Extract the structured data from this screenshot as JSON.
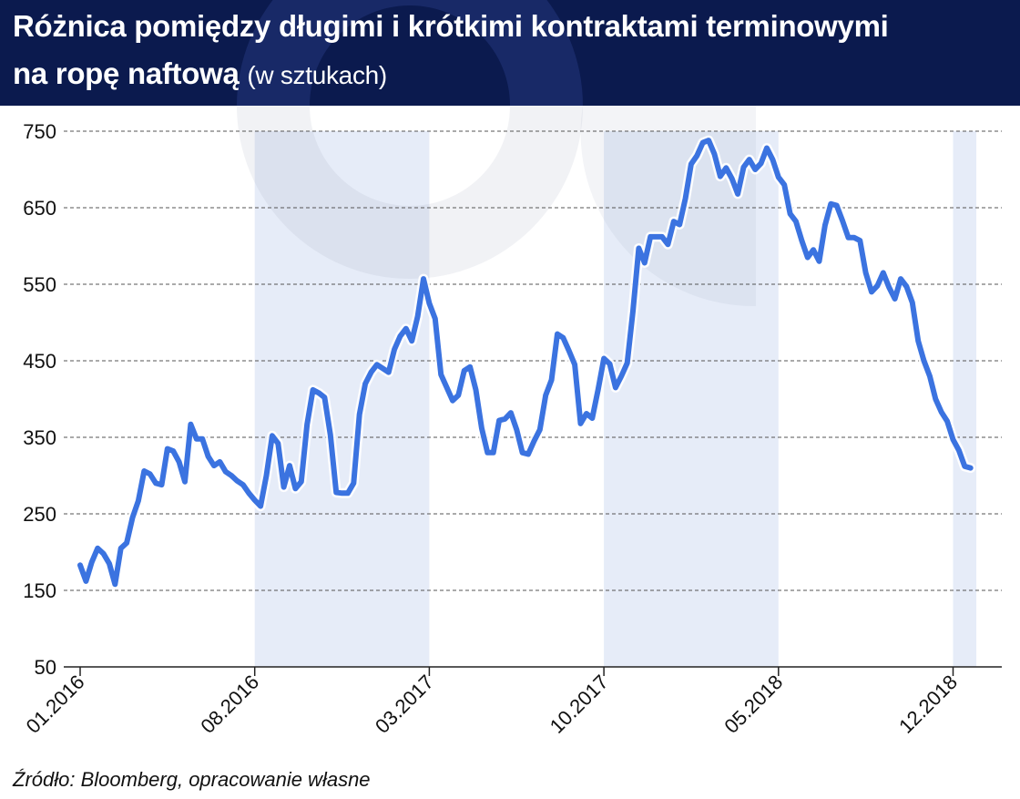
{
  "header": {
    "title_line1": "Różnica pomiędzy długimi i krótkimi kontraktami terminowymi",
    "title_line2": "na ropę naftową",
    "unit": "(w sztukach)"
  },
  "footer": {
    "source": "Źródło: Bloomberg, opracowanie własne"
  },
  "colors": {
    "header_bg": "#0b1a4e",
    "line": "#3b73e0",
    "band": "#e6ecf8",
    "grid": "#555555"
  },
  "chart_data": {
    "type": "line",
    "title": "Różnica pomiędzy długimi i krótkimi kontraktami terminowymi na ropę naftową (w sztukach)",
    "xlabel": "",
    "ylabel": "",
    "ylim": [
      50,
      750
    ],
    "yticks": [
      750,
      650,
      550,
      450,
      350,
      250,
      150,
      50
    ],
    "xtick_labels": [
      "01.2016",
      "08.2016",
      "03.2017",
      "10.2017",
      "05.2018",
      "12.2018"
    ],
    "xtick_positions": [
      0,
      30,
      60,
      90,
      120,
      150
    ],
    "shaded_ranges": [
      [
        30,
        60
      ],
      [
        90,
        120
      ],
      [
        150,
        154
      ]
    ],
    "grid": true,
    "series": [
      {
        "name": "",
        "values": [
          183,
          162,
          187,
          205,
          198,
          185,
          158,
          205,
          212,
          245,
          267,
          306,
          302,
          290,
          288,
          335,
          332,
          318,
          292,
          367,
          348,
          348,
          325,
          313,
          318,
          305,
          300,
          293,
          288,
          277,
          268,
          260,
          300,
          352,
          342,
          285,
          313,
          283,
          292,
          367,
          412,
          408,
          402,
          353,
          278,
          277,
          277,
          290,
          380,
          420,
          435,
          445,
          440,
          435,
          465,
          482,
          492,
          476,
          508,
          557,
          525,
          505,
          432,
          415,
          398,
          405,
          437,
          442,
          412,
          362,
          330,
          330,
          372,
          374,
          382,
          360,
          330,
          328,
          345,
          360,
          405,
          425,
          485,
          480,
          463,
          445,
          368,
          381,
          375,
          412,
          453,
          446,
          415,
          430,
          447,
          515,
          597,
          578,
          612,
          612,
          612,
          602,
          632,
          628,
          662,
          707,
          718,
          735,
          738,
          720,
          691,
          702,
          688,
          668,
          703,
          713,
          700,
          708,
          728,
          713,
          690,
          680,
          642,
          632,
          607,
          585,
          595,
          580,
          627,
          655,
          653,
          633,
          611,
          611,
          607,
          565,
          540,
          548,
          565,
          546,
          531,
          557,
          547,
          526,
          476,
          450,
          430,
          400,
          383,
          371,
          347,
          333,
          312,
          310
        ]
      }
    ]
  }
}
